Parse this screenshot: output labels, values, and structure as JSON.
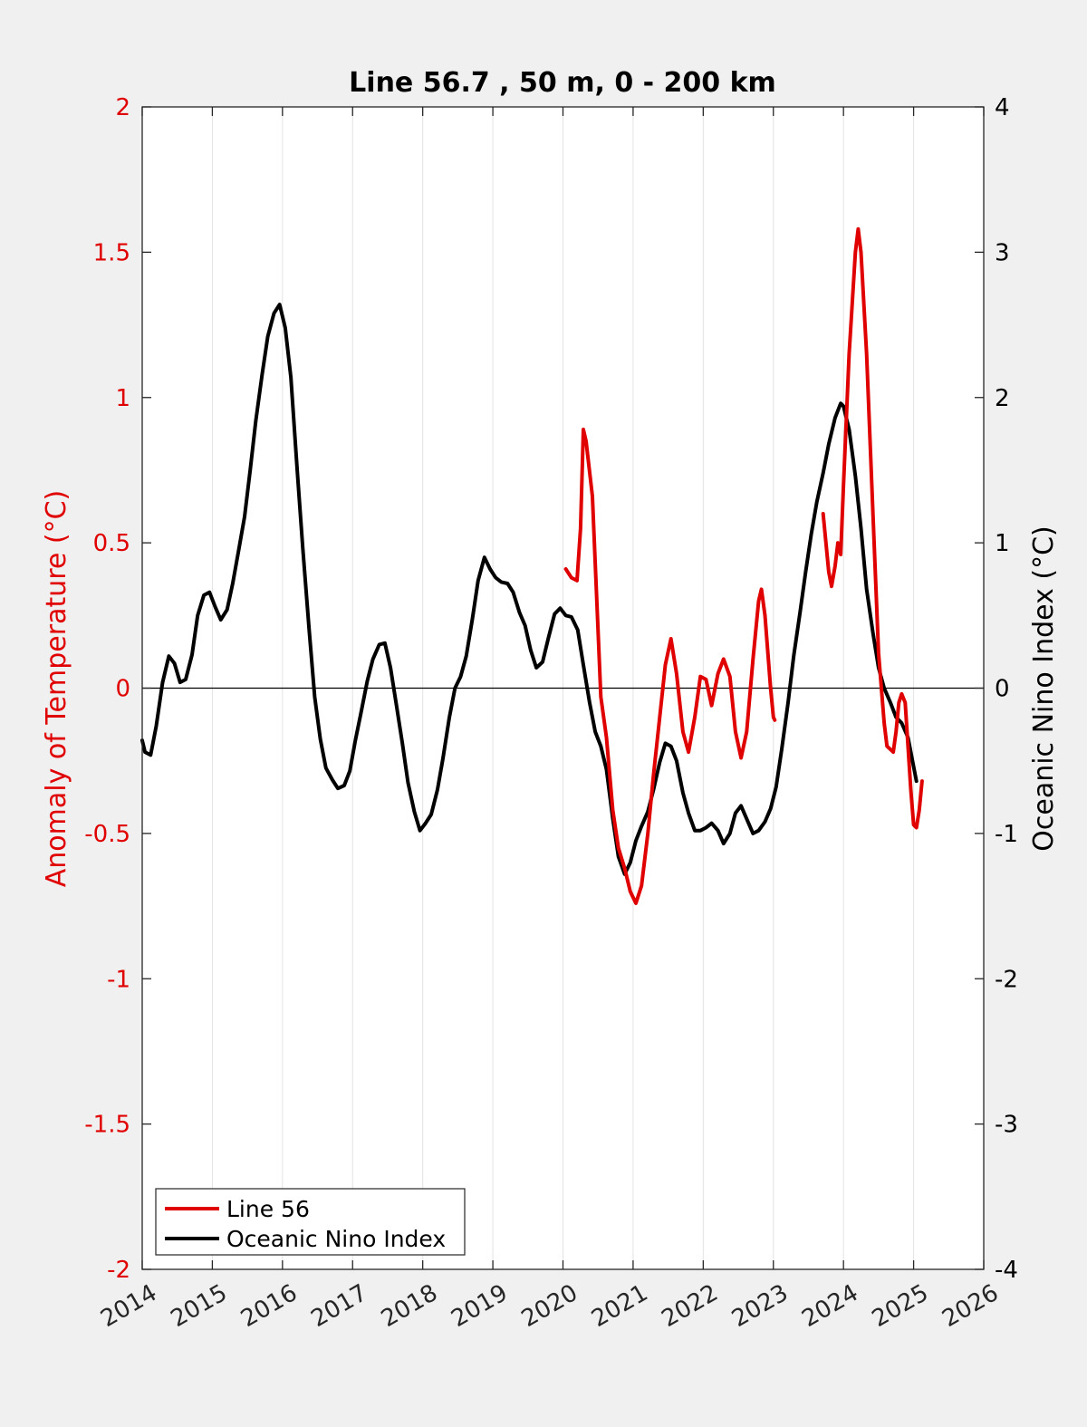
{
  "chart_data": {
    "type": "line",
    "title": "Line 56.7 , 50 m, 0 - 200 km",
    "xlabel": "",
    "ylabel_left": "Anomaly of Temperature (°C)",
    "ylabel_right": "Oceanic Nino Index (°C)",
    "xlim": [
      2014,
      2026
    ],
    "ylim_left": [
      -2,
      2
    ],
    "ylim_right": [
      -4,
      4
    ],
    "x_ticks": [
      "2014",
      "2015",
      "2016",
      "2017",
      "2018",
      "2019",
      "2020",
      "2021",
      "2022",
      "2023",
      "2024",
      "2025",
      "2026"
    ],
    "y_ticks_left": [
      "2",
      "1.5",
      "1",
      "0.5",
      "0",
      "-0.5",
      "-1",
      "-1.5",
      "-2"
    ],
    "y_ticks_right": [
      "4",
      "3",
      "2",
      "1",
      "0",
      "-1",
      "-2",
      "-3",
      "-4"
    ],
    "x_grid": true,
    "zero_line": true,
    "legend_position": "bottom-left",
    "colors": {
      "line56": "#e00000",
      "oni": "#000000",
      "left_axis": "#e00000",
      "right_axis": "#000000"
    },
    "series": [
      {
        "name": "Line 56",
        "axis": "left",
        "color": "#e00000",
        "segments": [
          [
            [
              2020.04,
              0.41
            ],
            [
              2020.12,
              0.38
            ],
            [
              2020.2,
              0.37
            ],
            [
              2020.25,
              0.55
            ],
            [
              2020.29,
              0.89
            ],
            [
              2020.33,
              0.85
            ],
            [
              2020.42,
              0.66
            ],
            [
              2020.5,
              0.2
            ],
            [
              2020.54,
              -0.03
            ],
            [
              2020.62,
              -0.17
            ],
            [
              2020.71,
              -0.42
            ],
            [
              2020.79,
              -0.55
            ],
            [
              2020.88,
              -0.62
            ],
            [
              2020.96,
              -0.7
            ],
            [
              2021.04,
              -0.74
            ],
            [
              2021.12,
              -0.68
            ],
            [
              2021.21,
              -0.5
            ],
            [
              2021.29,
              -0.3
            ],
            [
              2021.38,
              -0.1
            ],
            [
              2021.46,
              0.08
            ],
            [
              2021.54,
              0.17
            ],
            [
              2021.62,
              0.05
            ],
            [
              2021.71,
              -0.15
            ],
            [
              2021.79,
              -0.22
            ],
            [
              2021.88,
              -0.1
            ],
            [
              2021.96,
              0.04
            ],
            [
              2022.04,
              0.03
            ],
            [
              2022.12,
              -0.06
            ],
            [
              2022.21,
              0.05
            ],
            [
              2022.29,
              0.1
            ],
            [
              2022.38,
              0.04
            ],
            [
              2022.46,
              -0.15
            ],
            [
              2022.54,
              -0.24
            ],
            [
              2022.62,
              -0.15
            ],
            [
              2022.71,
              0.1
            ],
            [
              2022.79,
              0.3
            ],
            [
              2022.83,
              0.34
            ],
            [
              2022.88,
              0.25
            ],
            [
              2022.96,
              0.0
            ],
            [
              2023.0,
              -0.1
            ],
            [
              2023.02,
              -0.11
            ]
          ],
          [
            [
              2023.71,
              0.6
            ],
            [
              2023.75,
              0.5
            ],
            [
              2023.79,
              0.4
            ],
            [
              2023.83,
              0.35
            ],
            [
              2023.88,
              0.42
            ],
            [
              2023.92,
              0.5
            ],
            [
              2023.96,
              0.46
            ],
            [
              2024.0,
              0.7
            ],
            [
              2024.08,
              1.15
            ],
            [
              2024.17,
              1.5
            ],
            [
              2024.21,
              1.58
            ],
            [
              2024.25,
              1.5
            ],
            [
              2024.33,
              1.15
            ],
            [
              2024.42,
              0.6
            ],
            [
              2024.5,
              0.12
            ],
            [
              2024.54,
              0.0
            ],
            [
              2024.58,
              -0.12
            ],
            [
              2024.62,
              -0.2
            ],
            [
              2024.71,
              -0.22
            ],
            [
              2024.75,
              -0.15
            ],
            [
              2024.79,
              -0.05
            ],
            [
              2024.83,
              -0.02
            ],
            [
              2024.88,
              -0.05
            ],
            [
              2024.92,
              -0.2
            ],
            [
              2024.96,
              -0.35
            ],
            [
              2025.0,
              -0.47
            ],
            [
              2025.04,
              -0.48
            ],
            [
              2025.08,
              -0.42
            ],
            [
              2025.12,
              -0.32
            ]
          ]
        ]
      },
      {
        "name": "Oceanic Nino Index",
        "axis": "right",
        "color": "#000000",
        "segments": [
          [
            [
              2014.0,
              -0.36
            ],
            [
              2014.04,
              -0.44
            ],
            [
              2014.12,
              -0.46
            ],
            [
              2014.2,
              -0.26
            ],
            [
              2014.29,
              0.04
            ],
            [
              2014.38,
              0.22
            ],
            [
              2014.46,
              0.17
            ],
            [
              2014.54,
              0.04
            ],
            [
              2014.62,
              0.06
            ],
            [
              2014.71,
              0.23
            ],
            [
              2014.79,
              0.5
            ],
            [
              2014.88,
              0.64
            ],
            [
              2014.96,
              0.66
            ],
            [
              2015.04,
              0.56
            ],
            [
              2015.12,
              0.47
            ],
            [
              2015.21,
              0.54
            ],
            [
              2015.29,
              0.72
            ],
            [
              2015.38,
              0.96
            ],
            [
              2015.46,
              1.18
            ],
            [
              2015.54,
              1.5
            ],
            [
              2015.62,
              1.84
            ],
            [
              2015.71,
              2.16
            ],
            [
              2015.79,
              2.42
            ],
            [
              2015.88,
              2.58
            ],
            [
              2015.96,
              2.64
            ],
            [
              2016.04,
              2.48
            ],
            [
              2016.12,
              2.14
            ],
            [
              2016.21,
              1.5
            ],
            [
              2016.29,
              0.96
            ],
            [
              2016.38,
              0.4
            ],
            [
              2016.46,
              -0.06
            ],
            [
              2016.54,
              -0.35
            ],
            [
              2016.62,
              -0.55
            ],
            [
              2016.71,
              -0.63
            ],
            [
              2016.79,
              -0.69
            ],
            [
              2016.88,
              -0.67
            ],
            [
              2016.96,
              -0.57
            ],
            [
              2017.04,
              -0.36
            ],
            [
              2017.12,
              -0.17
            ],
            [
              2017.21,
              0.05
            ],
            [
              2017.29,
              0.2
            ],
            [
              2017.38,
              0.3
            ],
            [
              2017.46,
              0.31
            ],
            [
              2017.54,
              0.14
            ],
            [
              2017.62,
              -0.1
            ],
            [
              2017.71,
              -0.38
            ],
            [
              2017.79,
              -0.65
            ],
            [
              2017.88,
              -0.85
            ],
            [
              2017.96,
              -0.98
            ],
            [
              2018.04,
              -0.93
            ],
            [
              2018.12,
              -0.87
            ],
            [
              2018.21,
              -0.7
            ],
            [
              2018.29,
              -0.48
            ],
            [
              2018.38,
              -0.2
            ],
            [
              2018.46,
              0.0
            ],
            [
              2018.54,
              0.08
            ],
            [
              2018.62,
              0.22
            ],
            [
              2018.71,
              0.48
            ],
            [
              2018.79,
              0.74
            ],
            [
              2018.88,
              0.9
            ],
            [
              2018.96,
              0.82
            ],
            [
              2019.04,
              0.76
            ],
            [
              2019.12,
              0.73
            ],
            [
              2019.21,
              0.72
            ],
            [
              2019.29,
              0.66
            ],
            [
              2019.38,
              0.52
            ],
            [
              2019.46,
              0.43
            ],
            [
              2019.54,
              0.26
            ],
            [
              2019.62,
              0.14
            ],
            [
              2019.71,
              0.18
            ],
            [
              2019.79,
              0.34
            ],
            [
              2019.88,
              0.51
            ],
            [
              2019.96,
              0.55
            ],
            [
              2020.04,
              0.5
            ],
            [
              2020.12,
              0.49
            ],
            [
              2020.21,
              0.4
            ],
            [
              2020.29,
              0.16
            ],
            [
              2020.38,
              -0.1
            ],
            [
              2020.46,
              -0.3
            ],
            [
              2020.54,
              -0.4
            ],
            [
              2020.62,
              -0.56
            ],
            [
              2020.71,
              -0.9
            ],
            [
              2020.79,
              -1.16
            ],
            [
              2020.88,
              -1.28
            ],
            [
              2020.96,
              -1.2
            ],
            [
              2021.04,
              -1.05
            ],
            [
              2021.12,
              -0.95
            ],
            [
              2021.21,
              -0.85
            ],
            [
              2021.29,
              -0.7
            ],
            [
              2021.38,
              -0.51
            ],
            [
              2021.46,
              -0.38
            ],
            [
              2021.54,
              -0.4
            ],
            [
              2021.62,
              -0.5
            ],
            [
              2021.71,
              -0.72
            ],
            [
              2021.79,
              -0.86
            ],
            [
              2021.88,
              -0.98
            ],
            [
              2021.96,
              -0.98
            ],
            [
              2022.04,
              -0.96
            ],
            [
              2022.12,
              -0.93
            ],
            [
              2022.21,
              -0.98
            ],
            [
              2022.29,
              -1.07
            ],
            [
              2022.38,
              -1.0
            ],
            [
              2022.46,
              -0.86
            ],
            [
              2022.54,
              -0.81
            ],
            [
              2022.62,
              -0.9
            ],
            [
              2022.71,
              -1.0
            ],
            [
              2022.79,
              -0.98
            ],
            [
              2022.88,
              -0.92
            ],
            [
              2022.96,
              -0.83
            ],
            [
              2023.04,
              -0.68
            ],
            [
              2023.12,
              -0.42
            ],
            [
              2023.21,
              -0.1
            ],
            [
              2023.29,
              0.22
            ],
            [
              2023.38,
              0.52
            ],
            [
              2023.46,
              0.8
            ],
            [
              2023.54,
              1.06
            ],
            [
              2023.62,
              1.28
            ],
            [
              2023.71,
              1.48
            ],
            [
              2023.79,
              1.68
            ],
            [
              2023.88,
              1.86
            ],
            [
              2023.96,
              1.96
            ],
            [
              2024.0,
              1.94
            ],
            [
              2024.08,
              1.78
            ],
            [
              2024.17,
              1.46
            ],
            [
              2024.25,
              1.1
            ],
            [
              2024.33,
              0.68
            ],
            [
              2024.42,
              0.38
            ],
            [
              2024.5,
              0.14
            ],
            [
              2024.58,
              0.0
            ],
            [
              2024.67,
              -0.1
            ],
            [
              2024.75,
              -0.2
            ],
            [
              2024.83,
              -0.24
            ],
            [
              2024.92,
              -0.34
            ],
            [
              2025.0,
              -0.54
            ],
            [
              2025.04,
              -0.64
            ]
          ]
        ]
      }
    ]
  }
}
